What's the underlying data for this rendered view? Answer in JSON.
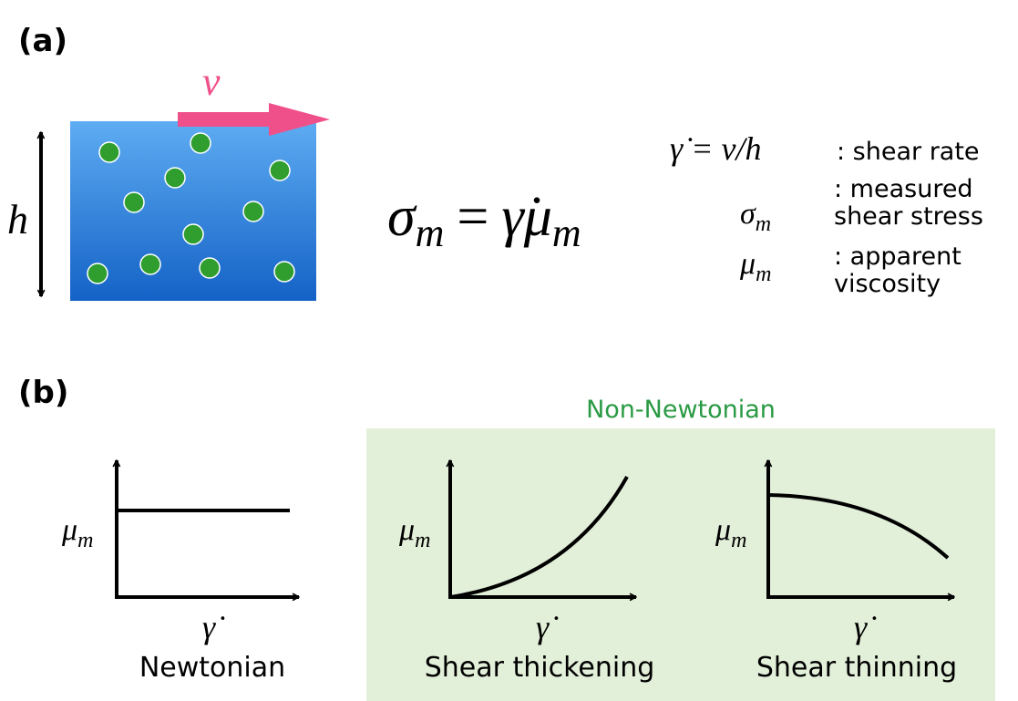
{
  "panel_a": {
    "label": "(a)",
    "velocity": "v",
    "height": "h",
    "equation": {
      "lhs": {
        "base": "σ",
        "sub": "m"
      },
      "eq": "=",
      "rate": "γ̇",
      "rhs": {
        "base": "μ",
        "sub": "m"
      }
    },
    "definitions": [
      {
        "symbol": "γ̇ = v/h",
        "text": [
          ": shear rate"
        ]
      },
      {
        "symbol": {
          "base": "σ",
          "sub": "m"
        },
        "text": [
          ": measured",
          "shear stress"
        ]
      },
      {
        "symbol": {
          "base": "μ",
          "sub": "m"
        },
        "text": [
          ": apparent",
          "viscosity"
        ]
      }
    ]
  },
  "panel_b": {
    "label": "(b)",
    "group_label": "Non-Newtonian",
    "plots": [
      {
        "ylabel": {
          "base": "μ",
          "sub": "m"
        },
        "xlabel": "γ̇",
        "title": "Newtonian"
      },
      {
        "ylabel": {
          "base": "μ",
          "sub": "m"
        },
        "xlabel": "γ̇",
        "title": "Shear thickening"
      },
      {
        "ylabel": {
          "base": "μ",
          "sub": "m"
        },
        "xlabel": "γ̇",
        "title": "Shear thinning"
      }
    ]
  }
}
